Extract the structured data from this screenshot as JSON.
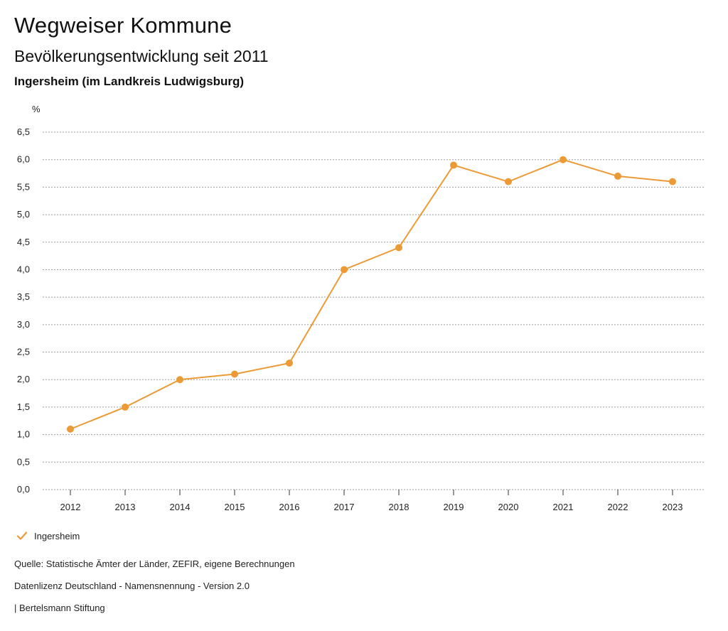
{
  "header": {
    "title": "Wegweiser Kommune",
    "subtitle": "Bevölkerungsentwicklung seit 2011",
    "region": "Ingersheim (im Landkreis Ludwigsburg)"
  },
  "colors": {
    "series": "#EB9A35",
    "grid": "#9a9a9a",
    "text": "#111111"
  },
  "legend": {
    "icon": "check-icon",
    "label": "Ingersheim"
  },
  "footer": {
    "source": "Quelle: Statistische Ämter der Länder, ZEFIR, eigene Berechnungen",
    "license": "Datenlizenz Deutschland - Namensnennung - Version 2.0",
    "brand": "| Bertelsmann Stiftung"
  },
  "chart_data": {
    "type": "line",
    "title": "Bevölkerungsentwicklung seit 2011",
    "xlabel": "",
    "ylabel": "%",
    "categories": [
      "2012",
      "2013",
      "2014",
      "2015",
      "2016",
      "2017",
      "2018",
      "2019",
      "2020",
      "2021",
      "2022",
      "2023"
    ],
    "series": [
      {
        "name": "Ingersheim",
        "values": [
          1.1,
          1.5,
          2.0,
          2.1,
          2.3,
          4.0,
          4.4,
          5.9,
          5.6,
          6.0,
          5.7,
          5.6
        ]
      }
    ],
    "ylim": [
      0,
      6.5
    ],
    "yticks": [
      "0,0",
      "0,5",
      "1,0",
      "1,5",
      "2,0",
      "2,5",
      "3,0",
      "3,5",
      "4,0",
      "4,5",
      "5,0",
      "5,5",
      "6,0",
      "6,5"
    ],
    "grid": true,
    "legend": "bottom-left"
  }
}
